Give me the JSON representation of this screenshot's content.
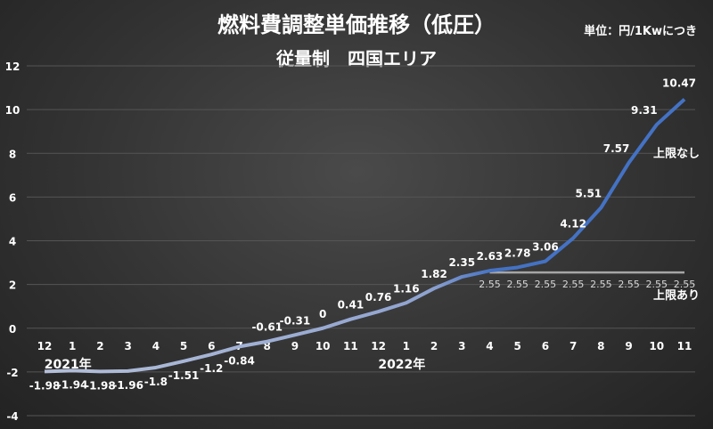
{
  "chart_data": {
    "type": "line",
    "title": "燃料費調整単価推移（低圧）",
    "subtitle": "従量制　四国エリア",
    "unit_note": "単位：円/1Kwにつき",
    "categories": [
      "12",
      "1",
      "2",
      "3",
      "4",
      "5",
      "6",
      "7",
      "8",
      "9",
      "10",
      "11",
      "12",
      "1",
      "2",
      "3",
      "4",
      "5",
      "6",
      "7",
      "8",
      "9",
      "10",
      "11"
    ],
    "year_labels": [
      {
        "label": "2021年",
        "at_index": 1
      },
      {
        "label": "2022年",
        "at_index": 13
      }
    ],
    "series": [
      {
        "name": "上限なし",
        "color": "#4472c4",
        "values": [
          -1.98,
          -1.94,
          -1.98,
          -1.96,
          -1.8,
          -1.51,
          -1.2,
          -0.84,
          -0.61,
          -0.31,
          0,
          0.41,
          0.76,
          1.16,
          1.82,
          2.35,
          2.63,
          2.78,
          3.06,
          4.12,
          5.51,
          7.57,
          9.31,
          10.47
        ]
      },
      {
        "name": "上限あり",
        "color": "#a6a6a6",
        "values": [
          null,
          null,
          null,
          null,
          null,
          null,
          null,
          null,
          null,
          null,
          null,
          null,
          null,
          null,
          null,
          null,
          2.55,
          2.55,
          2.55,
          2.55,
          2.55,
          2.55,
          2.55,
          2.55
        ]
      }
    ],
    "ylim": [
      -4,
      12
    ],
    "yticks": [
      -4,
      -2,
      0,
      2,
      4,
      6,
      8,
      10,
      12
    ],
    "grid": true
  }
}
